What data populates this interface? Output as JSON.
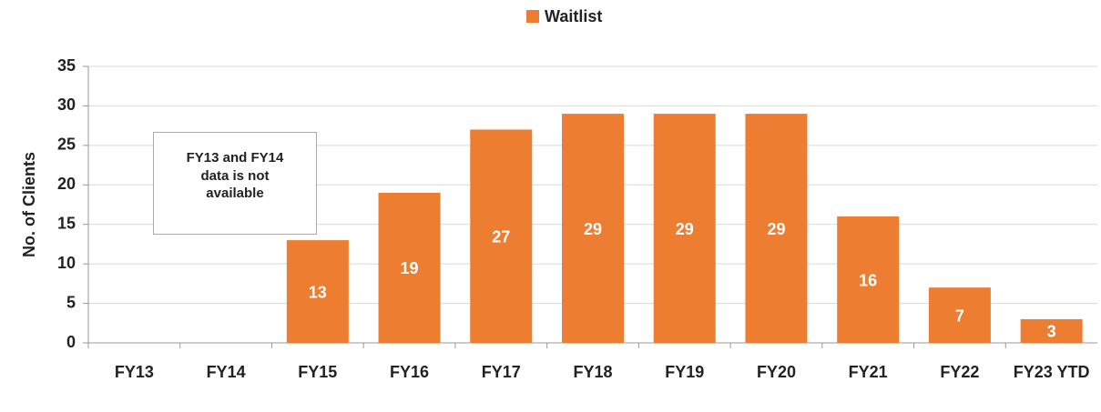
{
  "chart_data": {
    "type": "bar",
    "y_label": "No. of Clients",
    "categories": [
      "FY13",
      "FY14",
      "FY15",
      "FY16",
      "FY17",
      "FY18",
      "FY19",
      "FY20",
      "FY21",
      "FY22",
      "FY23 YTD"
    ],
    "series": [
      {
        "name": "Waitlist",
        "color": "#ed7d31",
        "values": [
          null,
          null,
          13,
          19,
          27,
          29,
          29,
          29,
          16,
          7,
          3
        ]
      }
    ],
    "ylim": [
      0,
      35
    ],
    "yticks": [
      0,
      5,
      10,
      15,
      20,
      25,
      30,
      35
    ],
    "grid": true,
    "legend": "top",
    "annotation": "FY13 and FY14 data is not available"
  }
}
